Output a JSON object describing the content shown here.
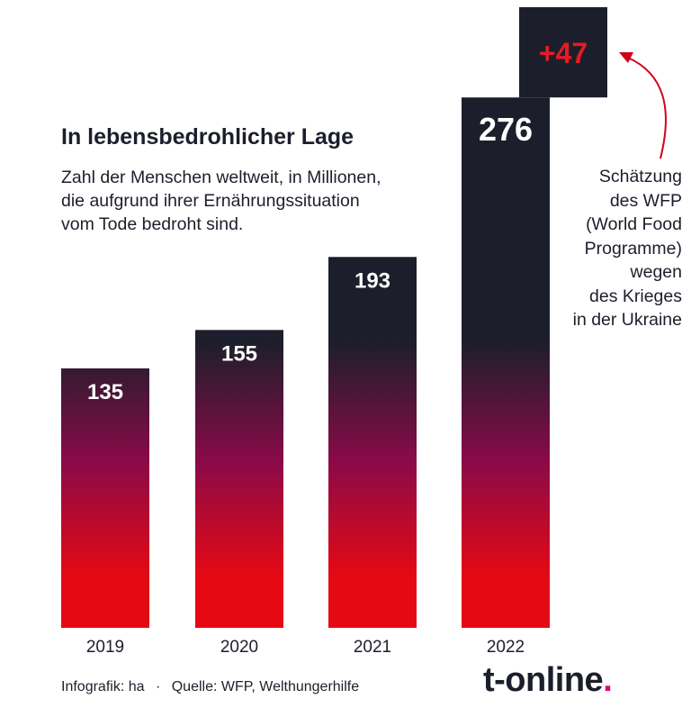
{
  "chart_data": {
    "type": "bar",
    "title": "In lebensbedrohlicher Lage",
    "subtitle_lines": [
      "Zahl der Menschen weltweit, in Millionen,",
      "die aufgrund ihrer Ernährungssituation",
      "vom Tode bedroht sind."
    ],
    "categories": [
      "2019",
      "2020",
      "2021",
      "2022"
    ],
    "values": [
      135,
      155,
      193,
      276
    ],
    "value_labels": [
      "135",
      "155",
      "193",
      "276"
    ],
    "extra": {
      "category": "2022",
      "value": 47,
      "label": "+47"
    },
    "ylim": [
      0,
      323
    ],
    "grid": false,
    "annotation_lines": [
      "Schätzung",
      "des WFP",
      "(World Food",
      "Programme)",
      "wegen",
      "des Krieges",
      "in der Ukraine"
    ]
  },
  "footer": {
    "credit": "Infografik: ha",
    "separator": "·",
    "source": "Quelle: WFP, Welthungerhilfe"
  },
  "logo": {
    "text": "t-online",
    "dot": "."
  },
  "colors": {
    "bar_top": "#1c1f2b",
    "bar_mid": "#8b0a48",
    "bar_bottom": "#e50914",
    "extra_label": "#e51b24",
    "arrow": "#d0021b",
    "logo_dot": "#e20074"
  }
}
